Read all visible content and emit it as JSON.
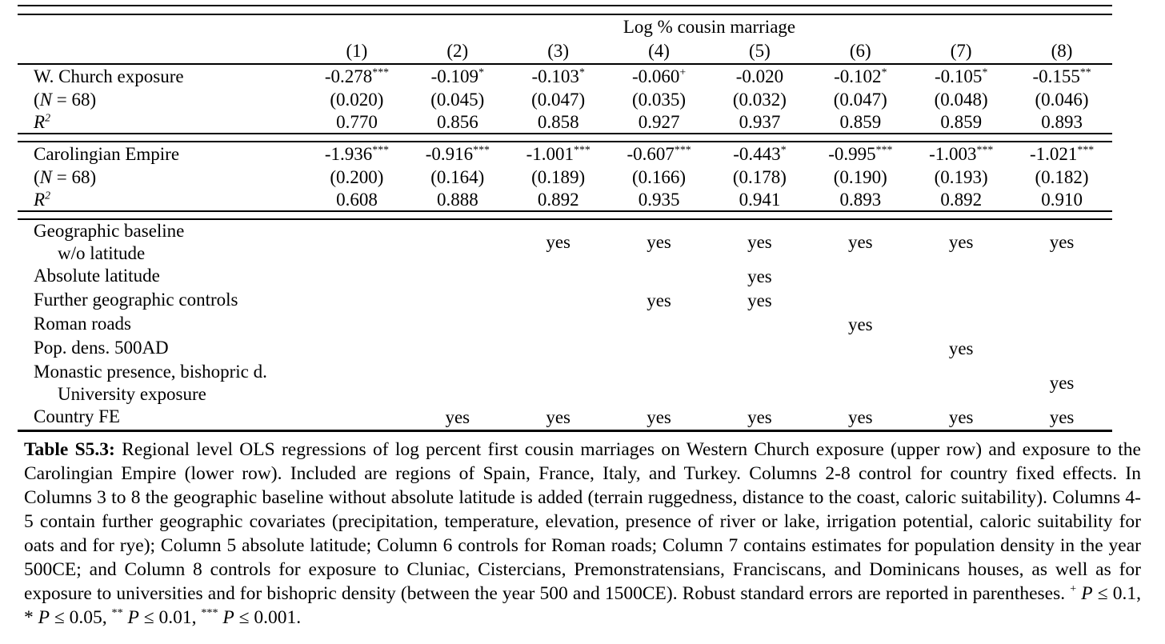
{
  "page": {
    "background": "#ffffff",
    "text_color": "#000000"
  },
  "table": {
    "spanner_title": "Log % cousin marriage",
    "column_headers": [
      "(1)",
      "(2)",
      "(3)",
      "(4)",
      "(5)",
      "(6)",
      "(7)",
      "(8)"
    ],
    "panels": [
      {
        "var_label": "W. Church exposure",
        "n_label": [
          {
            "t": "(",
            "st": ""
          },
          {
            "t": "N",
            "st": "i"
          },
          {
            "t": " = 68)",
            "st": ""
          }
        ],
        "r2_label": [
          {
            "t": "R",
            "st": "i"
          },
          {
            "t": "2",
            "st": "supi"
          }
        ],
        "coefficients": [
          {
            "v": "-0.278",
            "s": "***"
          },
          {
            "v": "-0.109",
            "s": "*"
          },
          {
            "v": "-0.103",
            "s": "*"
          },
          {
            "v": "-0.060",
            "s": "+"
          },
          {
            "v": "-0.020",
            "s": ""
          },
          {
            "v": "-0.102",
            "s": "*"
          },
          {
            "v": "-0.105",
            "s": "*"
          },
          {
            "v": "-0.155",
            "s": "**"
          }
        ],
        "std_errors": [
          "(0.020)",
          "(0.045)",
          "(0.047)",
          "(0.035)",
          "(0.032)",
          "(0.047)",
          "(0.048)",
          "(0.046)"
        ],
        "r2": [
          "0.770",
          "0.856",
          "0.858",
          "0.927",
          "0.937",
          "0.859",
          "0.859",
          "0.893"
        ]
      },
      {
        "var_label": "Carolingian Empire",
        "n_label": [
          {
            "t": "(",
            "st": ""
          },
          {
            "t": "N",
            "st": "i"
          },
          {
            "t": " = 68)",
            "st": ""
          }
        ],
        "r2_label": [
          {
            "t": "R",
            "st": "i"
          },
          {
            "t": "2",
            "st": "supi"
          }
        ],
        "coefficients": [
          {
            "v": "-1.936",
            "s": "***"
          },
          {
            "v": "-0.916",
            "s": "***"
          },
          {
            "v": "-1.001",
            "s": "***"
          },
          {
            "v": "-0.607",
            "s": "***"
          },
          {
            "v": "-0.443",
            "s": "*"
          },
          {
            "v": "-0.995",
            "s": "***"
          },
          {
            "v": "-1.003",
            "s": "***"
          },
          {
            "v": "-1.021",
            "s": "***"
          }
        ],
        "std_errors": [
          "(0.200)",
          "(0.164)",
          "(0.189)",
          "(0.166)",
          "(0.178)",
          "(0.190)",
          "(0.193)",
          "(0.182)"
        ],
        "r2": [
          "0.608",
          "0.888",
          "0.892",
          "0.935",
          "0.941",
          "0.893",
          "0.892",
          "0.910"
        ]
      }
    ],
    "controls": [
      {
        "label_lines": [
          "Geographic baseline",
          "w/o latitude"
        ],
        "values": [
          "",
          "",
          "yes",
          "yes",
          "yes",
          "yes",
          "yes",
          "yes"
        ]
      },
      {
        "label_lines": [
          "Absolute latitude"
        ],
        "values": [
          "",
          "",
          "",
          "",
          "yes",
          "",
          "",
          ""
        ]
      },
      {
        "label_lines": [
          "Further geographic controls"
        ],
        "values": [
          "",
          "",
          "",
          "yes",
          "yes",
          "",
          "",
          ""
        ]
      },
      {
        "label_lines": [
          "Roman roads"
        ],
        "values": [
          "",
          "",
          "",
          "",
          "",
          "yes",
          "",
          ""
        ]
      },
      {
        "label_lines": [
          "Pop. dens. 500AD"
        ],
        "values": [
          "",
          "",
          "",
          "",
          "",
          "",
          "yes",
          ""
        ]
      },
      {
        "label_lines": [
          "Monastic presence, bishopric d.",
          "University exposure"
        ],
        "values": [
          "",
          "",
          "",
          "",
          "",
          "",
          "",
          "yes"
        ]
      },
      {
        "label_lines": [
          "Country FE"
        ],
        "values": [
          "",
          "yes",
          "yes",
          "yes",
          "yes",
          "yes",
          "yes",
          "yes"
        ]
      }
    ]
  },
  "caption": {
    "segments": [
      {
        "t": "Table S5.3:",
        "st": "b"
      },
      {
        "t": " Regional level OLS regressions of log percent first cousin marriages on Western Church exposure (upper row) and exposure to the Carolingian Empire (lower row). Included are regions of Spain, France, Italy, and Turkey. Columns 2-8 control for country fixed effects. In Columns 3 to 8 the geographic baseline without absolute latitude is added (terrain ruggedness, distance to the coast, caloric suitability). Columns 4-5 contain further geographic covariates (precipitation, temperature, elevation, presence of river or lake, irrigation potential, caloric suitability for oats and for rye); Column 5 absolute latitude; Column 6 controls for Roman roads; Column 7 contains estimates for population density in the year 500CE; and Column 8 controls for exposure to Cluniac, Cistercians, Premonstratensians, Franciscans, and Dominicans houses, as well as for exposure to universities and for bishopric density (between the year 500 and 1500CE). Robust standard errors are reported in parentheses. ",
        "st": ""
      },
      {
        "t": "+",
        "st": "sup"
      },
      {
        "t": " ",
        "st": ""
      },
      {
        "t": "P",
        "st": "i"
      },
      {
        "t": " ≤ 0.1, * ",
        "st": ""
      },
      {
        "t": "P",
        "st": "i"
      },
      {
        "t": " ≤ 0.05, ",
        "st": ""
      },
      {
        "t": "**",
        "st": "sup"
      },
      {
        "t": " ",
        "st": ""
      },
      {
        "t": "P",
        "st": "i"
      },
      {
        "t": " ≤ 0.01, ",
        "st": ""
      },
      {
        "t": "***",
        "st": "sup"
      },
      {
        "t": " ",
        "st": ""
      },
      {
        "t": "P",
        "st": "i"
      },
      {
        "t": " ≤ 0.001.",
        "st": ""
      }
    ]
  }
}
